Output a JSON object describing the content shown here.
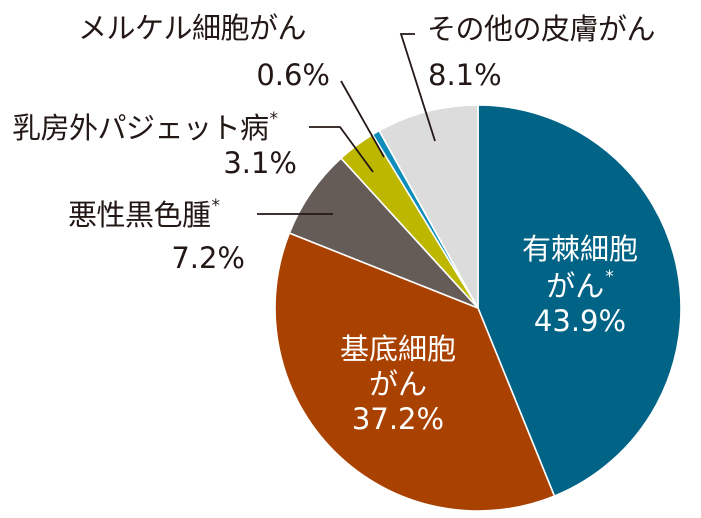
{
  "chart_data": {
    "type": "pie",
    "title": "",
    "start_angle_deg": 0,
    "direction": "clockwise",
    "categories": [
      "有棘細胞がん",
      "基底細胞がん",
      "悪性黒色腫",
      "乳房外パジェット病",
      "メルケル細胞がん",
      "その他の皮膚がん"
    ],
    "values": [
      43.9,
      37.2,
      7.2,
      3.1,
      0.6,
      8.1
    ],
    "unit": "%",
    "colors": [
      "#016386",
      "#A94100",
      "#655C57",
      "#BDB700",
      "#0E8DBA",
      "#DCDCDC"
    ],
    "asterisk": [
      true,
      false,
      true,
      true,
      false,
      false
    ],
    "legend": "none (labels placed directly with leader lines)"
  },
  "labels": {
    "squamous": {
      "line1": "有棘細胞",
      "line2": "がん",
      "mark": "*",
      "pct": "43.9%"
    },
    "basal": {
      "line1": "基底細胞",
      "line2": "がん",
      "pct": "37.2%"
    },
    "melanoma": {
      "name": "悪性黒色腫",
      "mark": "*",
      "pct": "7.2%"
    },
    "paget": {
      "name": "乳房外パジェット病",
      "mark": "*",
      "pct": "3.1%"
    },
    "merkel": {
      "name": "メルケル細胞がん",
      "pct": "0.6%"
    },
    "other": {
      "name": "その他の皮膚がん",
      "pct": "8.1%"
    }
  }
}
